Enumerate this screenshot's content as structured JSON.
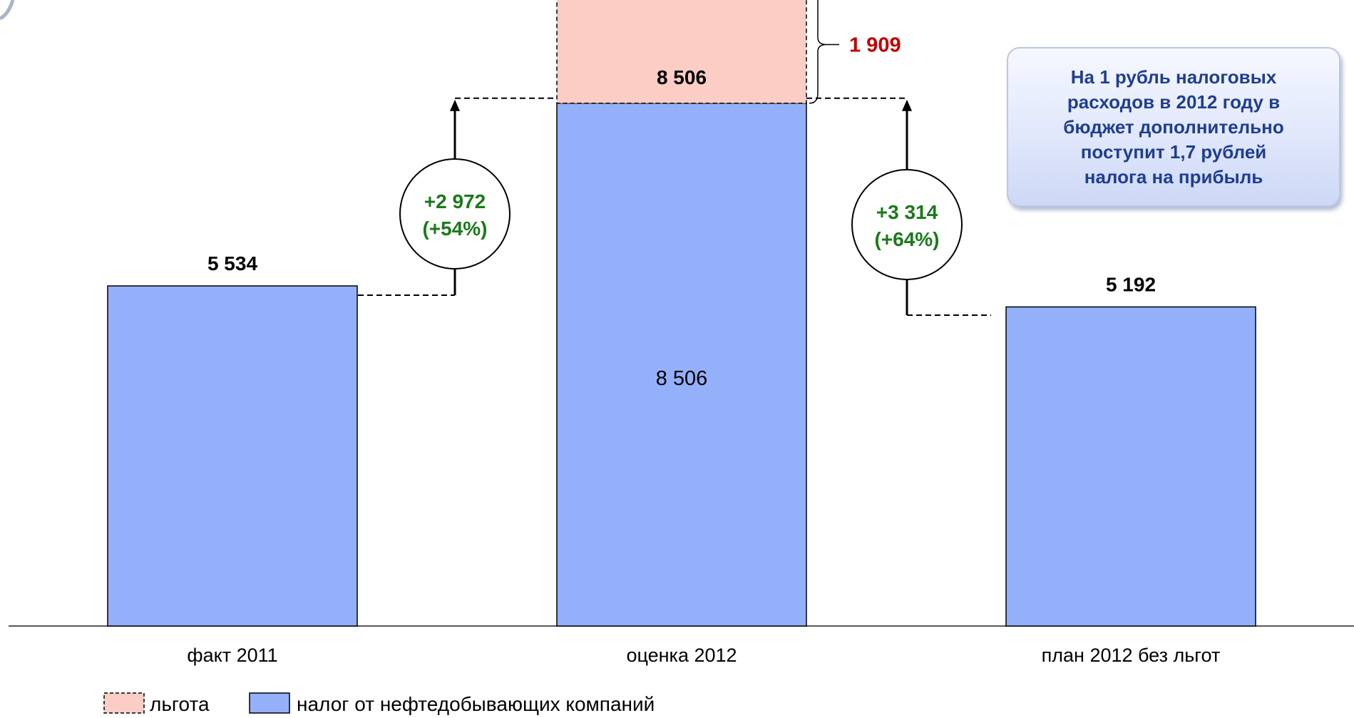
{
  "chart_data": {
    "type": "bar",
    "categories": [
      "факт 2011",
      "оценка 2012",
      "план 2012 без льгот"
    ],
    "series": [
      {
        "name": "налог от нефтедобывающих компаний",
        "values": [
          5534,
          8506,
          5192
        ]
      },
      {
        "name": "льгота",
        "values": [
          0,
          1909,
          0
        ]
      }
    ],
    "total_labels": [
      "5 534",
      "8 506",
      "5 192"
    ],
    "inner_labels": [
      "",
      "8 506",
      ""
    ],
    "benefit_label": "1 909",
    "changes": [
      {
        "from": 0,
        "to": 1,
        "value": "+2 972",
        "percent": "(+54%)"
      },
      {
        "from": 2,
        "to": 1,
        "value": "+3 314",
        "percent": "(+64%)"
      }
    ],
    "ylim": [
      0,
      11000
    ],
    "grid": false,
    "legend_position": "bottom-left",
    "colors": {
      "tax": "#94b0fa",
      "benefit": "#fbcdc5",
      "benefit_label": "#c00000",
      "change_text": "#1a7a1a"
    }
  },
  "note": {
    "text": "На 1 рубль налоговых\nрасходов в 2012 году в\nбюджет дополнительно\nпоступит 1,7 рублей\nналога на прибыль"
  }
}
